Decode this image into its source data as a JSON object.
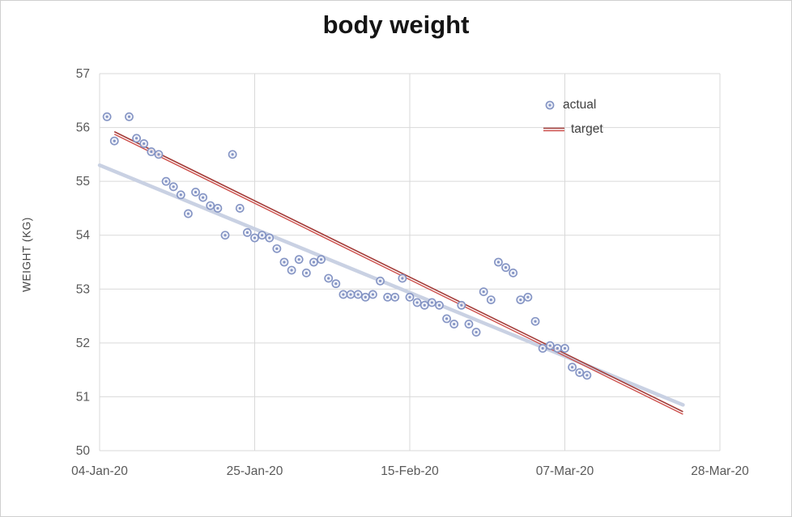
{
  "title": "body weight",
  "colors": {
    "actual_marker": "#8494c4",
    "actual_marker_fill": "#eef1f8",
    "target_line_dark": "#a43d3a",
    "target_line_light": "#cd4f4b",
    "trendline": "#c9d1e3",
    "gridline": "#d9d9d9",
    "axis_text": "#595959",
    "title_text": "#151515"
  },
  "legend": {
    "actual_label": "actual",
    "target_label": "target"
  },
  "chart_data": {
    "type": "scatter",
    "title": "body weight",
    "xlabel": "",
    "ylabel": "WEIGHT (KG)",
    "grid": true,
    "legend_position": "top-right-inside",
    "ylim": [
      50,
      57
    ],
    "y_ticks": [
      50,
      51,
      52,
      53,
      54,
      55,
      56,
      57
    ],
    "x_axis": {
      "unit": "days from 04-Jan-20",
      "lim_days": [
        0,
        84
      ],
      "tick_days": [
        0,
        21,
        42,
        63,
        84
      ],
      "tick_labels": [
        "04-Jan-20",
        "25-Jan-20",
        "15-Feb-20",
        "07-Mar-20",
        "28-Mar-20"
      ]
    },
    "series": [
      {
        "name": "actual",
        "type": "scatter",
        "points": [
          [
            1,
            56.2
          ],
          [
            2,
            55.75
          ],
          [
            4,
            56.2
          ],
          [
            5,
            55.8
          ],
          [
            6,
            55.7
          ],
          [
            7,
            55.55
          ],
          [
            8,
            55.5
          ],
          [
            9,
            55.0
          ],
          [
            10,
            54.9
          ],
          [
            11,
            54.75
          ],
          [
            12,
            54.4
          ],
          [
            13,
            54.8
          ],
          [
            14,
            54.7
          ],
          [
            15,
            54.55
          ],
          [
            16,
            54.5
          ],
          [
            17,
            54.0
          ],
          [
            18,
            55.5
          ],
          [
            19,
            54.5
          ],
          [
            20,
            54.05
          ],
          [
            21,
            53.95
          ],
          [
            22,
            54.0
          ],
          [
            23,
            53.95
          ],
          [
            24,
            53.75
          ],
          [
            25,
            53.5
          ],
          [
            26,
            53.35
          ],
          [
            27,
            53.55
          ],
          [
            28,
            53.3
          ],
          [
            29,
            53.5
          ],
          [
            30,
            53.55
          ],
          [
            31,
            53.2
          ],
          [
            32,
            53.1
          ],
          [
            33,
            52.9
          ],
          [
            34,
            52.9
          ],
          [
            35,
            52.9
          ],
          [
            36,
            52.85
          ],
          [
            37,
            52.9
          ],
          [
            38,
            53.15
          ],
          [
            39,
            52.85
          ],
          [
            40,
            52.85
          ],
          [
            41,
            53.2
          ],
          [
            42,
            52.85
          ],
          [
            43,
            52.75
          ],
          [
            44,
            52.7
          ],
          [
            45,
            52.75
          ],
          [
            46,
            52.7
          ],
          [
            47,
            52.45
          ],
          [
            48,
            52.35
          ],
          [
            49,
            52.7
          ],
          [
            50,
            52.35
          ],
          [
            51,
            52.2
          ],
          [
            52,
            52.95
          ],
          [
            53,
            52.8
          ],
          [
            54,
            53.5
          ],
          [
            55,
            53.4
          ],
          [
            56,
            53.3
          ],
          [
            57,
            52.8
          ],
          [
            58,
            52.85
          ],
          [
            59,
            52.4
          ],
          [
            60,
            51.9
          ],
          [
            61,
            51.95
          ],
          [
            62,
            51.9
          ],
          [
            63,
            51.9
          ],
          [
            64,
            51.55
          ],
          [
            65,
            51.45
          ],
          [
            66,
            51.4
          ]
        ]
      },
      {
        "name": "target",
        "type": "line",
        "points": [
          [
            2,
            55.9
          ],
          [
            79,
            50.7
          ]
        ]
      },
      {
        "name": "actual-trendline",
        "type": "line",
        "points": [
          [
            0,
            55.3
          ],
          [
            79,
            50.85
          ]
        ]
      }
    ]
  }
}
